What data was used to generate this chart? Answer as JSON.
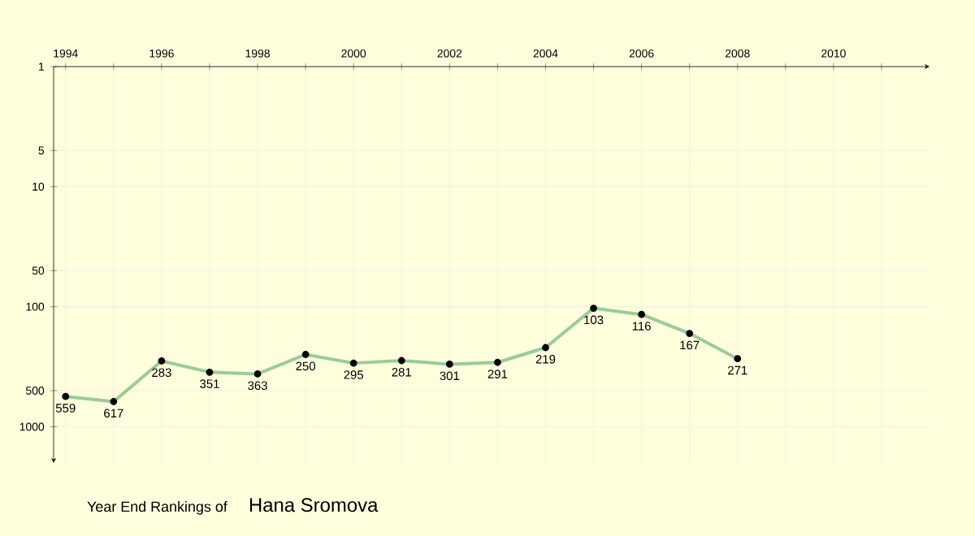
{
  "chart_data": {
    "type": "line",
    "title": "Year End Rankings of",
    "subtitle": "Hana Sromova",
    "x": [
      1994,
      1995,
      1996,
      1997,
      1998,
      1999,
      2000,
      2001,
      2002,
      2003,
      2004,
      2005,
      2006,
      2007,
      2008
    ],
    "values": [
      559,
      617,
      283,
      351,
      363,
      250,
      295,
      281,
      301,
      291,
      219,
      103,
      116,
      167,
      271
    ],
    "color": "#99cc99",
    "marker": "circle",
    "line_style": "solid",
    "data_labels": true,
    "log": "y",
    "grid": true,
    "xlim": [
      1993.75,
      2012
    ],
    "ylim": [
      2000,
      1
    ],
    "xticks": [
      1994,
      {
        "value": 1995,
        "label": null
      },
      1996,
      {
        "value": 1997,
        "label": null
      },
      1998,
      {
        "value": 1999,
        "label": null
      },
      2000,
      {
        "value": 2001,
        "label": null
      },
      2002,
      {
        "value": 2003,
        "label": null
      },
      2004,
      {
        "value": 2005,
        "label": null
      },
      2006,
      {
        "value": 2007,
        "label": null
      },
      2008,
      {
        "value": 2009,
        "label": null
      },
      2010,
      {
        "value": 2011,
        "label": null
      }
    ],
    "yticks": [
      1,
      5,
      10,
      50,
      100,
      500,
      1000
    ]
  }
}
